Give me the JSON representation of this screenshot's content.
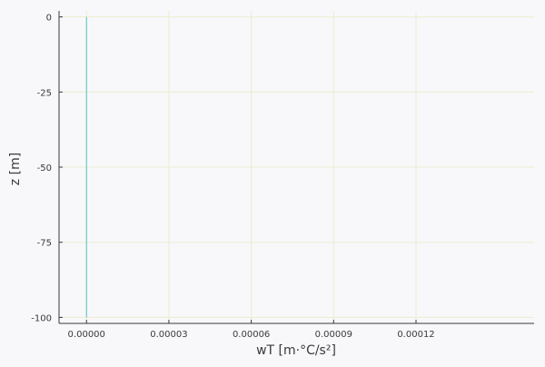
{
  "chart_data": {
    "type": "line",
    "title": "",
    "xlabel": "wT [m·°C/s²]",
    "ylabel": "z [m]",
    "xlim": [
      -1e-05,
      0.000163
    ],
    "ylim": [
      -102,
      2
    ],
    "x_ticks": [
      0.0,
      3e-05,
      6e-05,
      9e-05,
      0.00012
    ],
    "x_tick_labels": [
      "0.00000",
      "0.00003",
      "0.00006",
      "0.00009",
      "0.00012"
    ],
    "y_ticks": [
      0,
      -25,
      -50,
      -75,
      -100
    ],
    "y_tick_labels": [
      "0",
      "-25",
      "-50",
      "-75",
      "-100"
    ],
    "grid": true,
    "series": [
      {
        "color": "#4fc3c7",
        "x": [
          0.0,
          0.0
        ],
        "y": [
          0,
          -100
        ]
      }
    ]
  },
  "colors": {
    "background": "#f8f8fb",
    "axis": "#3a3a3a",
    "grid": "#ececd0",
    "line": "#4fc3c7",
    "label_accent": "#e8c800"
  }
}
